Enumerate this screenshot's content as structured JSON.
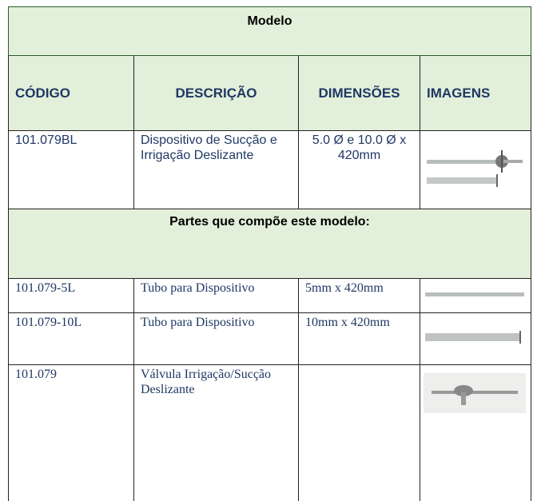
{
  "title": "Modelo",
  "columns": [
    "CÓDIGO",
    "DESCRIÇÃO",
    "DIMENSÕES",
    "IMAGENS"
  ],
  "main_row": [
    "101.079BL",
    "Dispositivo de Sucção e Irrigação Deslizante",
    "5.0 Ø e 10.0 Ø x 420mm"
  ],
  "parts_title": "Partes que compõe este modelo:",
  "parts": [
    [
      "101.079-5L",
      "Tubo para Dispositivo",
      "5mm x 420mm"
    ],
    [
      "101.079-10L",
      "Tubo para Dispositivo",
      "10mm x 420mm"
    ],
    [
      "101.079",
      "Válvula Irrigação/Sucção Deslizante",
      ""
    ]
  ]
}
